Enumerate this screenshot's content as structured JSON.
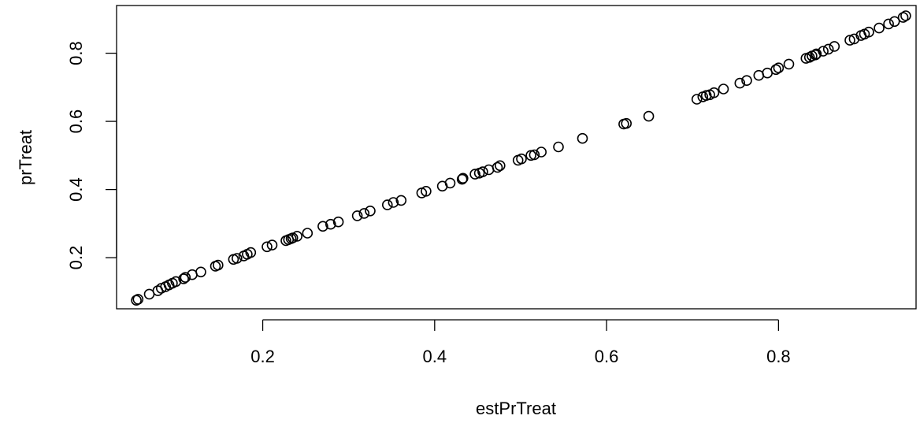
{
  "chart_data": {
    "type": "scatter",
    "title": "",
    "xlabel": "estPrTreat",
    "ylabel": "prTreat",
    "xlim": [
      0.03,
      0.96
    ],
    "ylim": [
      0.05,
      0.94
    ],
    "xticks": [
      0.2,
      0.4,
      0.6,
      0.8
    ],
    "xtick_labels": [
      "0.2",
      "0.4",
      "0.6",
      "0.8"
    ],
    "yticks": [
      0.2,
      0.4,
      0.6,
      0.8
    ],
    "ytick_labels": [
      "0.2",
      "0.4",
      "0.6",
      "0.8"
    ],
    "grid": false,
    "marker": "open-circle",
    "series": [
      {
        "x": [
          0.053,
          0.055,
          0.068,
          0.078,
          0.082,
          0.087,
          0.091,
          0.095,
          0.099,
          0.108,
          0.11,
          0.118,
          0.128,
          0.145,
          0.148,
          0.166,
          0.17,
          0.178,
          0.182,
          0.186,
          0.205,
          0.211,
          0.227,
          0.23,
          0.233,
          0.235,
          0.24,
          0.252,
          0.27,
          0.279,
          0.288,
          0.31,
          0.318,
          0.325,
          0.345,
          0.352,
          0.361,
          0.385,
          0.39,
          0.409,
          0.418,
          0.432,
          0.433,
          0.447,
          0.452,
          0.456,
          0.463,
          0.473,
          0.476,
          0.497,
          0.501,
          0.512,
          0.516,
          0.524,
          0.544,
          0.572,
          0.62,
          0.623,
          0.649,
          0.705,
          0.712,
          0.716,
          0.72,
          0.725,
          0.736,
          0.755,
          0.763,
          0.777,
          0.787,
          0.797,
          0.8,
          0.812,
          0.832,
          0.836,
          0.839,
          0.843,
          0.844,
          0.852,
          0.858,
          0.865,
          0.883,
          0.888,
          0.896,
          0.9,
          0.905,
          0.917,
          0.928,
          0.935,
          0.945,
          0.948
        ],
        "y": [
          0.075,
          0.078,
          0.093,
          0.103,
          0.11,
          0.115,
          0.12,
          0.125,
          0.13,
          0.138,
          0.142,
          0.15,
          0.158,
          0.175,
          0.178,
          0.195,
          0.198,
          0.205,
          0.21,
          0.215,
          0.232,
          0.237,
          0.25,
          0.253,
          0.256,
          0.258,
          0.263,
          0.272,
          0.292,
          0.298,
          0.305,
          0.323,
          0.33,
          0.337,
          0.355,
          0.362,
          0.368,
          0.39,
          0.395,
          0.41,
          0.419,
          0.43,
          0.433,
          0.445,
          0.448,
          0.452,
          0.458,
          0.465,
          0.47,
          0.486,
          0.49,
          0.5,
          0.502,
          0.51,
          0.525,
          0.55,
          0.592,
          0.594,
          0.615,
          0.665,
          0.672,
          0.676,
          0.678,
          0.684,
          0.695,
          0.712,
          0.72,
          0.735,
          0.742,
          0.752,
          0.757,
          0.768,
          0.785,
          0.788,
          0.792,
          0.795,
          0.798,
          0.806,
          0.812,
          0.82,
          0.838,
          0.842,
          0.852,
          0.856,
          0.862,
          0.874,
          0.886,
          0.893,
          0.905,
          0.91
        ]
      }
    ]
  }
}
